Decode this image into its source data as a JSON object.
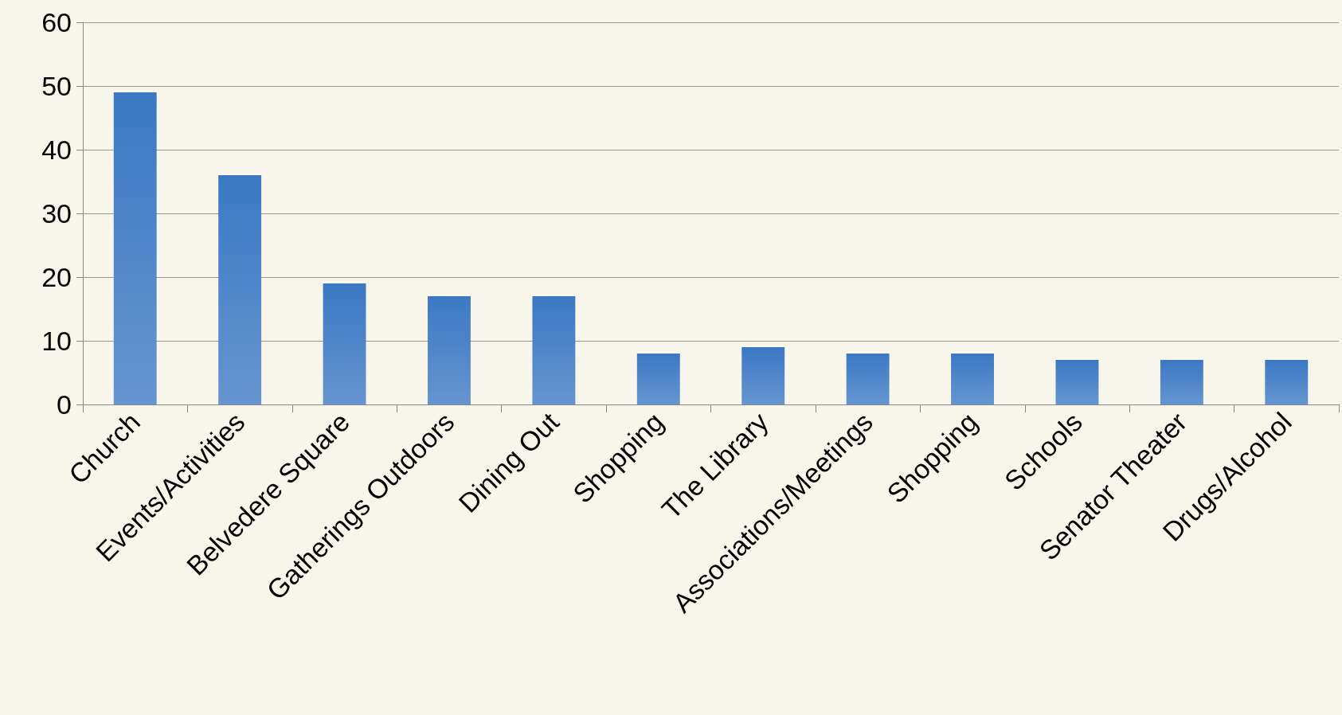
{
  "chart_data": {
    "type": "bar",
    "categories": [
      "Church",
      "Events/Activities",
      "Belvedere Square",
      "Gatherings Outdoors",
      "Dining Out",
      "Shopping",
      "The Library",
      "Associations/Meetings",
      "Shopping",
      "Schools",
      "Senator Theater",
      "Drugs/Alcohol"
    ],
    "values": [
      49,
      36,
      19,
      17,
      17,
      8,
      9,
      8,
      8,
      7,
      7,
      7
    ],
    "color": "#3b78c4",
    "ylim": [
      0,
      60
    ],
    "yticks": [
      0,
      10,
      20,
      30,
      40,
      50,
      60
    ],
    "grid": "y"
  }
}
